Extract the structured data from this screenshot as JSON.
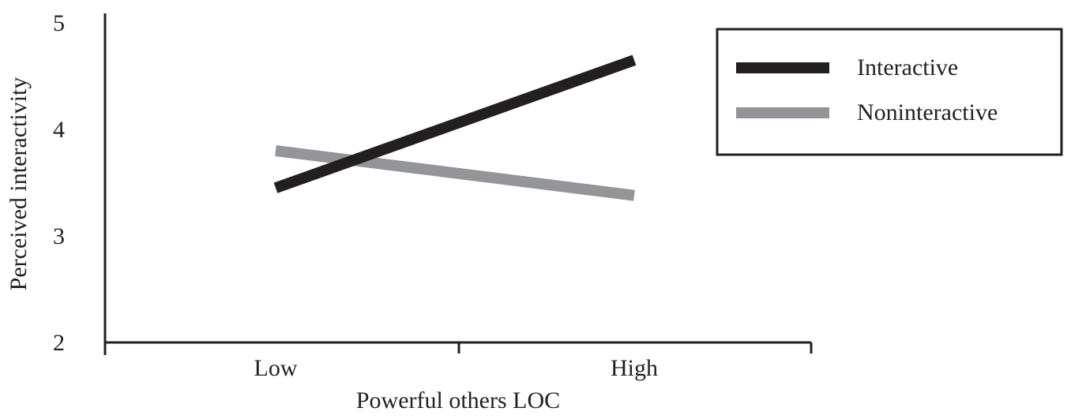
{
  "chart_data": {
    "type": "line",
    "title": "",
    "xlabel": "Powerful others LOC",
    "ylabel": "Perceived interactivity",
    "categories": [
      "Low",
      "High"
    ],
    "ylim": [
      2,
      5
    ],
    "yticks": [
      "2",
      "3",
      "4",
      "5"
    ],
    "grid": false,
    "legend_position": "top-right",
    "series": [
      {
        "name": "Interactive",
        "values": [
          3.45,
          4.65
        ],
        "color": "#231f20"
      },
      {
        "name": "Noninteractive",
        "values": [
          3.8,
          3.38
        ],
        "color": "#939598"
      }
    ]
  }
}
